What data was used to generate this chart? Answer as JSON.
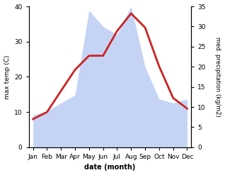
{
  "months": [
    "Jan",
    "Feb",
    "Mar",
    "Apr",
    "May",
    "Jun",
    "Jul",
    "Aug",
    "Sep",
    "Oct",
    "Nov",
    "Dec"
  ],
  "month_indices": [
    0,
    1,
    2,
    3,
    4,
    5,
    6,
    7,
    8,
    9,
    10,
    11
  ],
  "max_temp": [
    8,
    10,
    16,
    22,
    26,
    26,
    33,
    38,
    34,
    23,
    14,
    11
  ],
  "precipitation": [
    8,
    9,
    11,
    13,
    34,
    30,
    28,
    35,
    20,
    12,
    11,
    12
  ],
  "temp_color": "#cc2222",
  "precip_fill_color": "#c5d4f5",
  "temp_ylim": [
    0,
    40
  ],
  "precip_ylim": [
    0,
    35
  ],
  "temp_yticks": [
    0,
    10,
    20,
    30,
    40
  ],
  "precip_yticks": [
    0,
    5,
    10,
    15,
    20,
    25,
    30,
    35
  ],
  "xlabel": "date (month)",
  "ylabel_left": "max temp (C)",
  "ylabel_right": "med. precipitation (kg/m2)",
  "background_color": "#ffffff",
  "line_width": 2.0
}
